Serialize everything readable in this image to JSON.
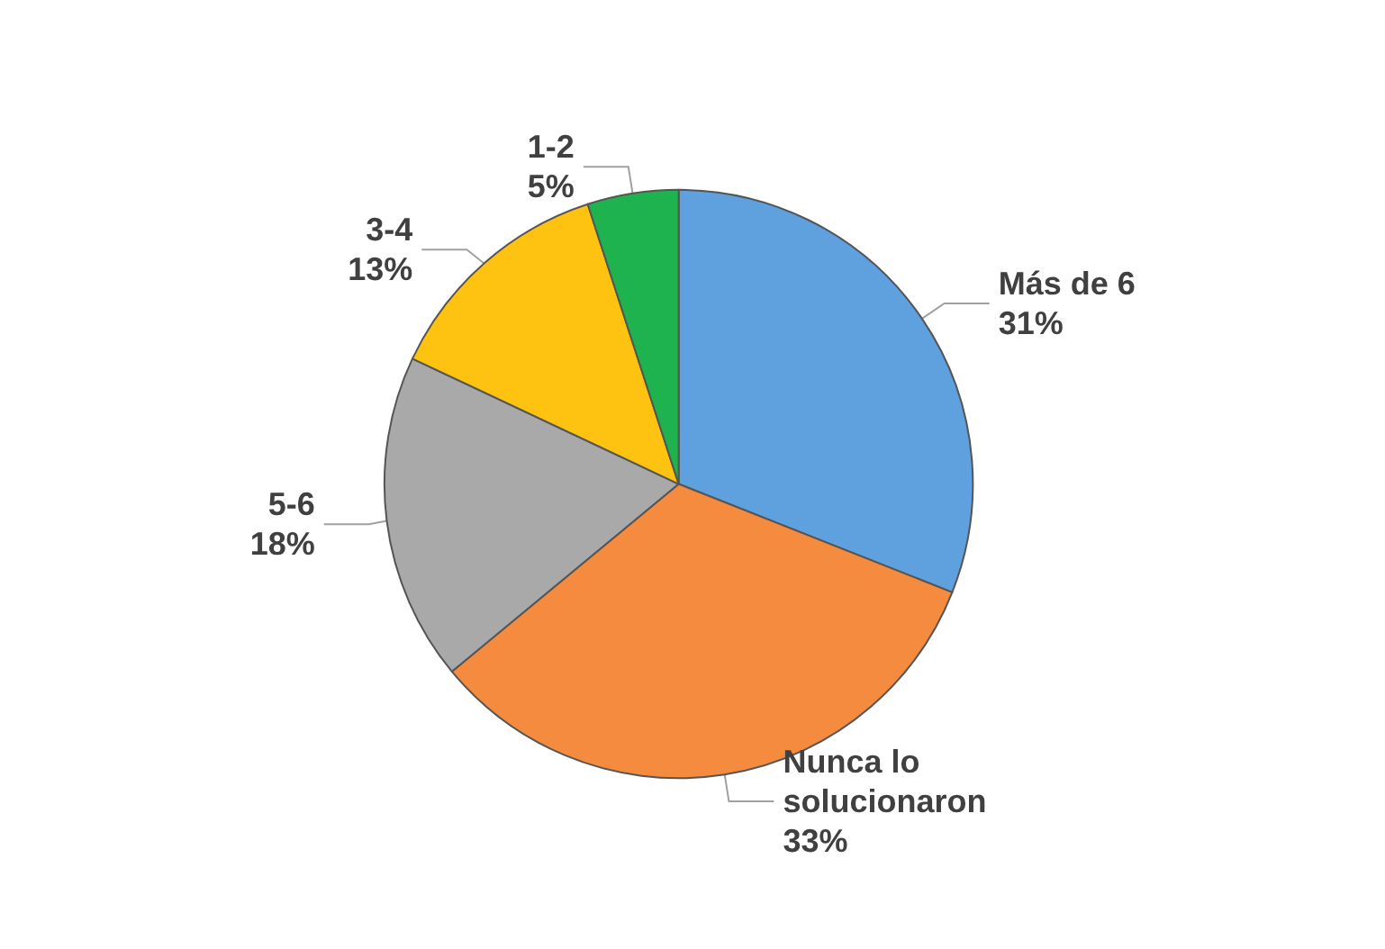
{
  "chart_data": {
    "type": "pie",
    "categories": [
      "Más de 6",
      "Nunca lo solucionaron",
      "5-6",
      "3-4",
      "1-2"
    ],
    "values": [
      31,
      33,
      18,
      13,
      5
    ],
    "value_labels": [
      "31%",
      "33%",
      "18%",
      "13%",
      "5%"
    ],
    "colors": [
      "#5fa0de",
      "#f58b3e",
      "#a9a9a9",
      "#fec310",
      "#1fb34f"
    ],
    "legend": false
  }
}
